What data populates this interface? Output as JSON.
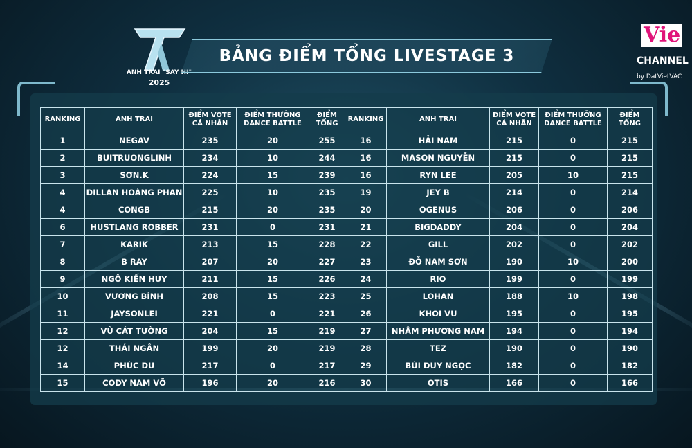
{
  "header": {
    "title": "BẢNG ĐIỂM TỔNG LIVESTAGE 3",
    "logo_text": "ANH TRAI \"SAY HI\"",
    "logo_year": "2025",
    "channel_logo": "Vie",
    "channel_name": "CHANNEL",
    "channel_owner": "by DatVietVAC"
  },
  "table": {
    "columns": [
      [
        "RANKING"
      ],
      [
        "ANH TRAI"
      ],
      [
        "ĐIỂM VOTE",
        "CÁ NHÂN"
      ],
      [
        "ĐIỂM THƯỞNG",
        "DANCE BATTLE"
      ],
      [
        "ĐIỂM",
        "TỔNG"
      ],
      [
        "RANKING"
      ],
      [
        "ANH TRAI"
      ],
      [
        "ĐIỂM VOTE",
        "CÁ NHÂN"
      ],
      [
        "ĐIỂM THƯỞNG",
        "DANCE BATTLE"
      ],
      [
        "ĐIỂM",
        "TỔNG"
      ]
    ],
    "rows": [
      [
        1,
        "NEGAV",
        235,
        20,
        255,
        16,
        "HẢI NAM",
        215,
        0,
        215
      ],
      [
        2,
        "BUITRUONGLINH",
        234,
        10,
        244,
        16,
        "MASON NGUYỄN",
        215,
        0,
        215
      ],
      [
        3,
        "SƠN.K",
        224,
        15,
        239,
        16,
        "RYN LEE",
        205,
        10,
        215
      ],
      [
        4,
        "DILLAN HOÀNG PHAN",
        225,
        10,
        235,
        19,
        "JEY B",
        214,
        0,
        214
      ],
      [
        4,
        "CONGB",
        215,
        20,
        235,
        20,
        "OGENUS",
        206,
        0,
        206
      ],
      [
        6,
        "HUSTLANG ROBBER",
        231,
        0,
        231,
        21,
        "BIGDADDY",
        204,
        0,
        204
      ],
      [
        7,
        "KARIK",
        213,
        15,
        228,
        22,
        "GILL",
        202,
        0,
        202
      ],
      [
        8,
        "B RAY",
        207,
        20,
        227,
        23,
        "ĐỖ NAM SƠN",
        190,
        10,
        200
      ],
      [
        9,
        "NGÔ KIẾN HUY",
        211,
        15,
        226,
        24,
        "RIO",
        199,
        0,
        199
      ],
      [
        10,
        "VƯƠNG BÌNH",
        208,
        15,
        223,
        25,
        "LOHAN",
        188,
        10,
        198
      ],
      [
        11,
        "JAYSONLEI",
        221,
        0,
        221,
        26,
        "KHOI VU",
        195,
        0,
        195
      ],
      [
        12,
        "VŨ CÁT TƯỜNG",
        204,
        15,
        219,
        27,
        "NHÂM PHƯƠNG NAM",
        194,
        0,
        194
      ],
      [
        12,
        "THÁI NGÂN",
        199,
        20,
        219,
        28,
        "TEZ",
        190,
        0,
        190
      ],
      [
        14,
        "PHÚC DU",
        217,
        0,
        217,
        29,
        "BÙI DUY NGỌC",
        182,
        0,
        182
      ],
      [
        15,
        "CODY NAM VÕ",
        196,
        20,
        216,
        30,
        "OTIS",
        166,
        0,
        166
      ]
    ]
  }
}
